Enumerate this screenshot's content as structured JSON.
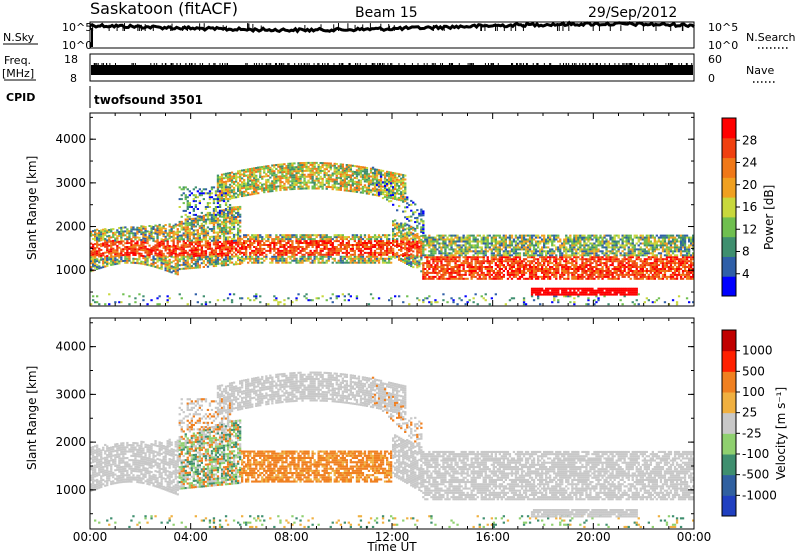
{
  "header": {
    "station": "Saskatoon (fitACF)",
    "beam": "Beam 15",
    "date": "29/Sep/2012"
  },
  "top_panels": {
    "nsky_label": "N.Sky",
    "nsearch_label": "N.Search",
    "freq_label_line1": "Freq.",
    "freq_label_line2": "[MHz]",
    "nave_label": "Nave",
    "cpid_label": "CPID",
    "cpid_value": "twofsound 3501",
    "noise_ticks_left": [
      "10^5",
      "10^0"
    ],
    "noise_ticks_right": [
      "10^5",
      "10^0"
    ],
    "freq_ticks": [
      "18",
      "8"
    ],
    "nave_ticks": [
      "60",
      "0"
    ]
  },
  "chart_data": [
    {
      "type": "heatmap",
      "name": "power",
      "ylabel": "Slant Range [km]",
      "xlabel": "",
      "ylim": [
        180,
        4600
      ],
      "xlim_hours": [
        0,
        24
      ],
      "yticks": [
        "1000",
        "2000",
        "3000",
        "4000"
      ],
      "colorbar": {
        "label": "Power [dB]",
        "ticks": [
          "28",
          "24",
          "20",
          "16",
          "12",
          "8",
          "4"
        ],
        "colors": [
          "#0000ff",
          "#2f5fa8",
          "#3f8f6f",
          "#6fbf4f",
          "#c8d83c",
          "#f0a020",
          "#f07818",
          "#f04010",
          "#ff0000"
        ]
      }
    },
    {
      "type": "heatmap",
      "name": "velocity",
      "ylabel": "Slant Range [km]",
      "xlabel": "Time UT",
      "ylim": [
        180,
        4600
      ],
      "xlim_hours": [
        0,
        24
      ],
      "yticks": [
        "1000",
        "2000",
        "3000",
        "4000"
      ],
      "xticks": [
        "00:00",
        "04:00",
        "08:00",
        "12:00",
        "16:00",
        "20:00",
        "00:00"
      ],
      "colorbar": {
        "label": "Velocity [m s⁻¹]",
        "ticks": [
          "1000",
          "500",
          "100",
          "25",
          "-25",
          "-100",
          "-500",
          "-1000"
        ],
        "colors": [
          "#2040c0",
          "#3060a0",
          "#3f8f6f",
          "#8fd06f",
          "#c8c8c8",
          "#f0b040",
          "#f08020",
          "#ff2000",
          "#c00000"
        ]
      }
    }
  ],
  "colors": {
    "ground_scatter": "#c8c8c8",
    "frame": "#000000"
  }
}
